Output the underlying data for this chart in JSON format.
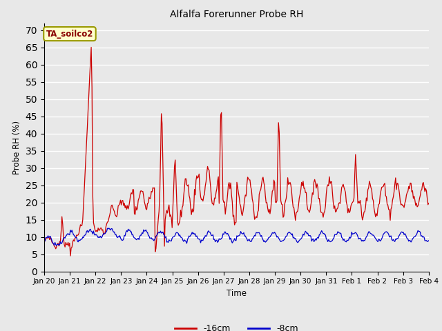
{
  "title": "Alfalfa Forerunner Probe RH",
  "ylabel": "Probe RH (%)",
  "xlabel": "Time",
  "ylim": [
    0,
    72
  ],
  "yticks": [
    0,
    5,
    10,
    15,
    20,
    25,
    30,
    35,
    40,
    45,
    50,
    55,
    60,
    65,
    70
  ],
  "bg_color": "#e8e8e8",
  "fig_color": "#e8e8e8",
  "grid_color": "#ffffff",
  "line1_color": "#cc0000",
  "line2_color": "#0000cc",
  "legend_label1": "-16cm",
  "legend_label2": "-8cm",
  "annotation_text": "TA_soilco2",
  "annotation_bg": "#ffffcc",
  "annotation_border": "#999900",
  "annotation_text_color": "#880000",
  "tick_labels": [
    "Jan 20",
    "Jan 21",
    "Jan 22",
    "Jan 23",
    "Jan 24",
    "Jan 25",
    "Jan 26",
    "Jan 27",
    "Jan 28",
    "Jan 29",
    "Jan 30",
    "Jan 31",
    "Feb 1",
    "Feb 2",
    "Feb 3",
    "Feb 4"
  ],
  "tick_positions": [
    0,
    1,
    2,
    3,
    4,
    5,
    6,
    7,
    8,
    9,
    10,
    11,
    12,
    13,
    14,
    15
  ]
}
